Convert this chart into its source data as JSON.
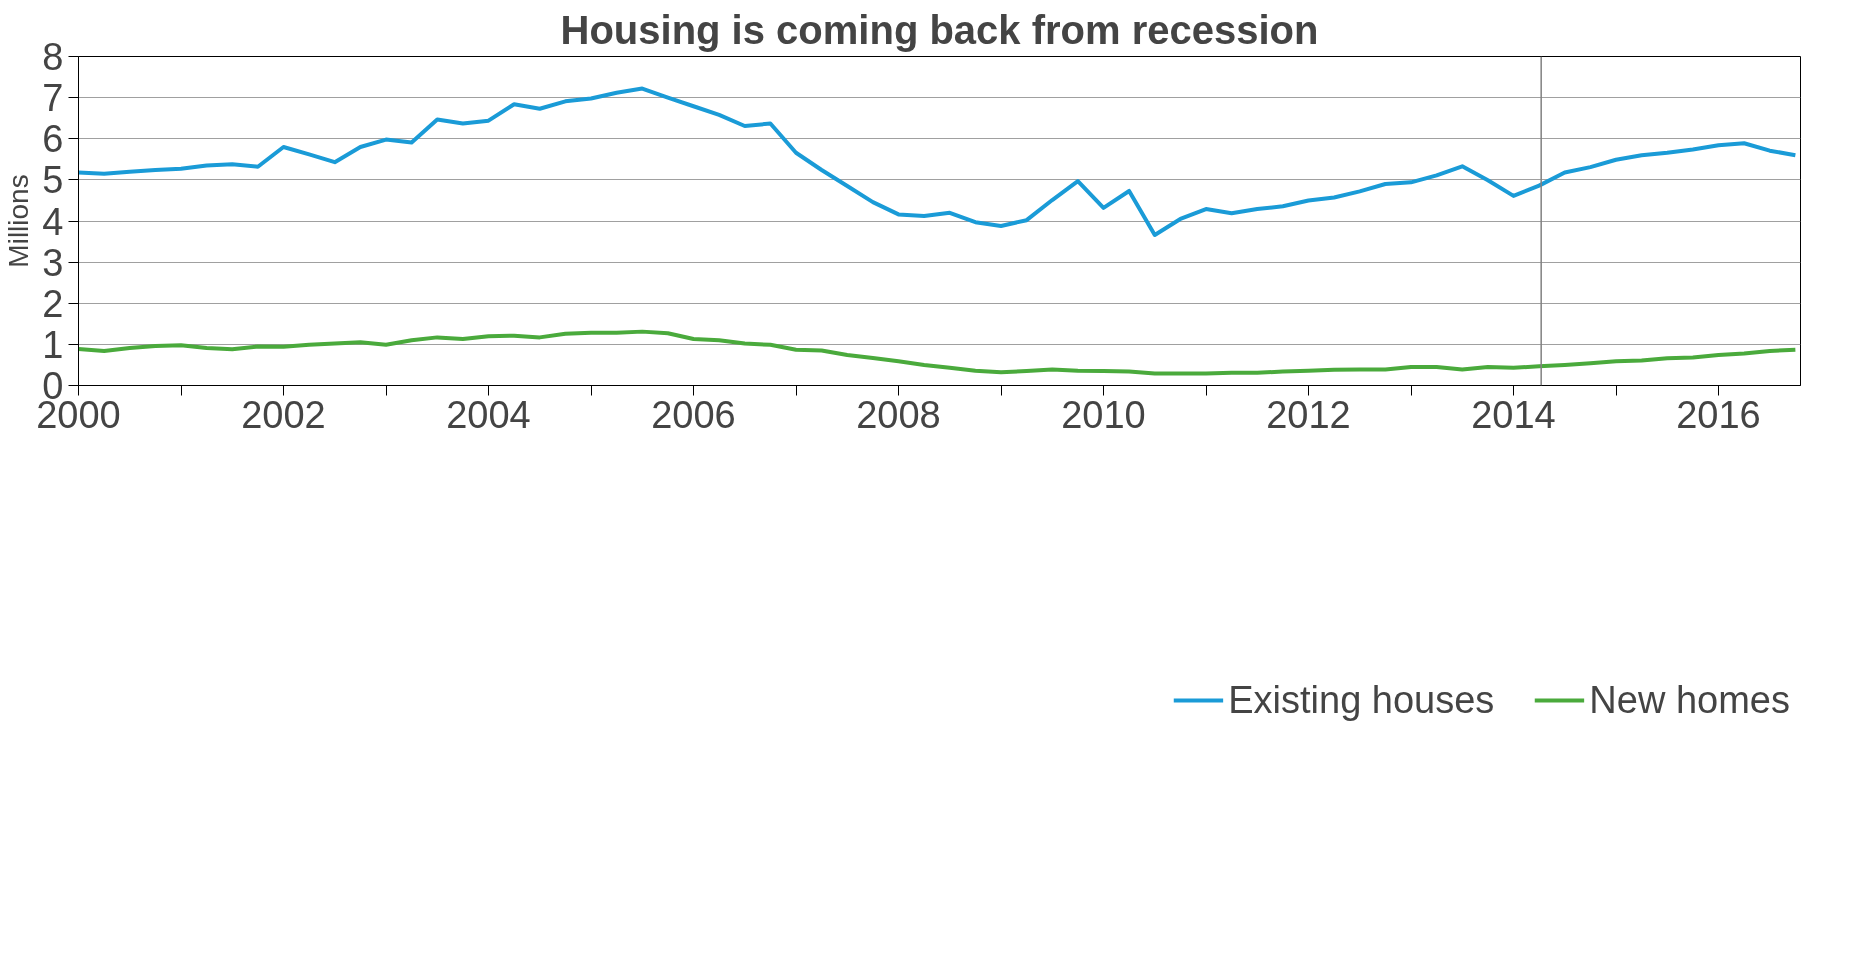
{
  "chart_data": {
    "type": "line",
    "title": "Housing is coming back from recession",
    "ylabel": "Millions",
    "x": [
      2000,
      2000.25,
      2000.5,
      2000.75,
      2001,
      2001.25,
      2001.5,
      2001.75,
      2002,
      2002.25,
      2002.5,
      2002.75,
      2003,
      2003.25,
      2003.5,
      2003.75,
      2004,
      2004.25,
      2004.5,
      2004.75,
      2005,
      2005.25,
      2005.5,
      2005.75,
      2006,
      2006.25,
      2006.5,
      2006.75,
      2007,
      2007.25,
      2007.5,
      2007.75,
      2008,
      2008.25,
      2008.5,
      2008.75,
      2009,
      2009.25,
      2009.5,
      2009.75,
      2010,
      2010.25,
      2010.5,
      2010.75,
      2011,
      2011.25,
      2011.5,
      2011.75,
      2012,
      2012.25,
      2012.5,
      2012.75,
      2013,
      2013.25,
      2013.5,
      2013.75,
      2014,
      2014.25,
      2014.5,
      2014.75,
      2015,
      2015.25,
      2015.5,
      2015.75,
      2016,
      2016.25,
      2016.5,
      2016.75
    ],
    "series": [
      {
        "name": "Existing houses",
        "color": "#1a9bd7",
        "values": [
          5.18,
          5.15,
          5.2,
          5.24,
          5.27,
          5.35,
          5.38,
          5.32,
          5.8,
          5.62,
          5.43,
          5.8,
          5.98,
          5.91,
          6.47,
          6.37,
          6.44,
          6.84,
          6.73,
          6.91,
          6.98,
          7.12,
          7.22,
          7.0,
          6.79,
          6.58,
          6.31,
          6.37,
          5.66,
          5.24,
          4.85,
          4.46,
          4.16,
          4.12,
          4.2,
          3.97,
          3.88,
          4.02,
          4.51,
          4.97,
          4.32,
          4.73,
          3.66,
          4.05,
          4.29,
          4.19,
          4.29,
          4.36,
          4.5,
          4.57,
          4.72,
          4.9,
          4.94,
          5.11,
          5.33,
          4.99,
          4.61,
          4.86,
          5.18,
          5.31,
          5.49,
          5.6,
          5.66,
          5.74,
          5.84,
          5.89,
          5.71,
          5.6
        ]
      },
      {
        "name": "New homes",
        "color": "#4aaa3c",
        "values": [
          0.89,
          0.84,
          0.91,
          0.96,
          0.98,
          0.91,
          0.88,
          0.95,
          0.94,
          0.99,
          1.02,
          1.05,
          0.99,
          1.1,
          1.17,
          1.13,
          1.2,
          1.21,
          1.17,
          1.26,
          1.28,
          1.28,
          1.31,
          1.27,
          1.13,
          1.1,
          1.02,
          0.99,
          0.87,
          0.85,
          0.74,
          0.67,
          0.59,
          0.5,
          0.43,
          0.36,
          0.32,
          0.35,
          0.39,
          0.36,
          0.35,
          0.34,
          0.29,
          0.29,
          0.29,
          0.31,
          0.31,
          0.34,
          0.36,
          0.38,
          0.39,
          0.39,
          0.45,
          0.45,
          0.39,
          0.45,
          0.43,
          0.47,
          0.5,
          0.54,
          0.59,
          0.61,
          0.66,
          0.68,
          0.74,
          0.78,
          0.84,
          0.87
        ]
      }
    ],
    "xlim": [
      2000,
      2016.8
    ],
    "xticks": [
      2000,
      {
        "value": 2001,
        "label": null
      },
      2002,
      {
        "value": 2003,
        "label": null
      },
      2004,
      {
        "value": 2005,
        "label": null
      },
      2006,
      {
        "value": 2007,
        "label": null
      },
      2008,
      {
        "value": 2009,
        "label": null
      },
      2010,
      {
        "value": 2011,
        "label": null
      },
      2012,
      {
        "value": 2013,
        "label": null
      },
      2014,
      {
        "value": 2015,
        "label": null
      },
      2016
    ],
    "ylim": [
      0,
      8
    ],
    "yticks": [
      0,
      1,
      2,
      3,
      4,
      5,
      6,
      7,
      8
    ],
    "grid": "y",
    "legend": "bottom",
    "line_style": "solid",
    "ref_lines": [
      {
        "axis": "x",
        "value": 2014.27,
        "label": null,
        "color": "#808080"
      }
    ]
  }
}
